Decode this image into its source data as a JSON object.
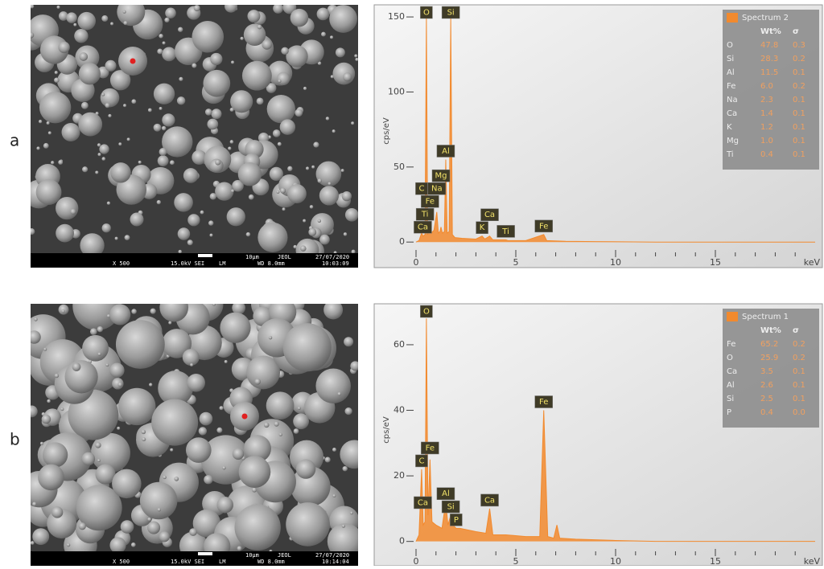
{
  "panels": [
    {
      "label": "a",
      "sem": {
        "scale": "10µm",
        "vendor": "JEOL",
        "date": "27/07/2020",
        "magnification": "X 500",
        "mode": "15.0kV SEI",
        "lens": "LM",
        "distance": "WD 8.0mm",
        "time": "10:03:09"
      }
    },
    {
      "label": "b",
      "sem": {
        "scale": "10µm",
        "vendor": "JEOL",
        "date": "27/07/2020",
        "magnification": "X 500",
        "mode": "15.0kV SEI",
        "lens": "LM",
        "distance": "WD 8.0mm",
        "time": "10:14:04"
      }
    }
  ],
  "chart_data": [
    {
      "type": "area",
      "ylabel": "cps/eV",
      "xlabel": "keV",
      "x": [
        0,
        0.15,
        0.28,
        0.35,
        0.45,
        0.52,
        0.58,
        0.65,
        0.7,
        0.78,
        0.9,
        1.04,
        1.12,
        1.2,
        1.25,
        1.32,
        1.42,
        1.49,
        1.56,
        1.66,
        1.74,
        1.82,
        1.95,
        2.3,
        3.0,
        3.31,
        3.45,
        3.69,
        3.85,
        4.5,
        4.6,
        5.5,
        6.4,
        6.55,
        7.5,
        9,
        12,
        20
      ],
      "series": [
        {
          "name": "Spectrum 2",
          "color": "#f28a2e",
          "values": [
            0,
            1,
            6,
            4,
            5,
            150,
            5,
            7,
            14,
            6,
            8,
            20,
            6,
            7,
            10,
            6,
            7,
            55,
            6,
            7,
            150,
            5,
            3,
            2.5,
            2,
            4,
            2,
            4,
            1.5,
            1.5,
            1,
            1,
            5,
            1,
            0.5,
            0.3,
            0,
            0
          ]
        }
      ],
      "xlim": [
        0,
        20
      ],
      "xticks": [
        0,
        5,
        10,
        15
      ],
      "xminorticks": [
        1,
        2,
        3,
        4,
        6,
        7,
        8,
        9,
        11,
        12,
        13,
        14,
        16,
        17,
        18,
        19
      ],
      "ylim": [
        -9,
        157
      ],
      "yticks": [
        0,
        50,
        100,
        150
      ],
      "annotations": [
        {
          "text": "O",
          "x": 0.52
        },
        {
          "text": "Si",
          "x": 1.74
        },
        {
          "text": "Al",
          "x": 1.49
        },
        {
          "text": "Ca",
          "x": 0.34
        },
        {
          "text": "Ti",
          "x": 0.45
        },
        {
          "text": "Fe",
          "x": 0.7
        },
        {
          "text": "C",
          "x": 0.28
        },
        {
          "text": "Na",
          "x": 1.04
        },
        {
          "text": "Mg",
          "x": 1.25
        },
        {
          "text": "K",
          "x": 3.31
        },
        {
          "text": "Ca",
          "x": 3.69
        },
        {
          "text": "Ti",
          "x": 4.5
        },
        {
          "text": "Fe",
          "x": 6.4
        }
      ],
      "table": {
        "headers": [
          "Wt%",
          "σ"
        ],
        "rows": [
          {
            "element": "O",
            "wt": "47.8",
            "sigma": "0.3"
          },
          {
            "element": "Si",
            "wt": "28.3",
            "sigma": "0.2"
          },
          {
            "element": "Al",
            "wt": "11.5",
            "sigma": "0.1"
          },
          {
            "element": "Fe",
            "wt": "6.0",
            "sigma": "0.2"
          },
          {
            "element": "Na",
            "wt": "2.3",
            "sigma": "0.1"
          },
          {
            "element": "Ca",
            "wt": "1.4",
            "sigma": "0.1"
          },
          {
            "element": "K",
            "wt": "1.2",
            "sigma": "0.1"
          },
          {
            "element": "Mg",
            "wt": "1.0",
            "sigma": "0.1"
          },
          {
            "element": "Ti",
            "wt": "0.4",
            "sigma": "0.1",
            "color": "#e8312a"
          }
        ]
      }
    },
    {
      "type": "area",
      "ylabel": "cps/eV",
      "xlabel": "keV",
      "x": [
        0,
        0.15,
        0.28,
        0.36,
        0.45,
        0.52,
        0.6,
        0.7,
        0.8,
        1.0,
        1.3,
        1.49,
        1.6,
        1.74,
        1.85,
        2.01,
        2.2,
        3.0,
        3.5,
        3.69,
        3.85,
        4.5,
        5.5,
        6.2,
        6.4,
        6.6,
        6.9,
        7.06,
        7.2,
        8,
        10,
        12,
        20
      ],
      "series": [
        {
          "name": "Spectrum 1",
          "color": "#f28a2e",
          "values": [
            0,
            2,
            22,
            5,
            6,
            68,
            8,
            25,
            6,
            5,
            4,
            12,
            5,
            8,
            5,
            4,
            4,
            3,
            2.5,
            10,
            2,
            2,
            1.5,
            1.5,
            40,
            1.5,
            1,
            5,
            1,
            0.7,
            0.3,
            0,
            0
          ]
        }
      ],
      "xlim": [
        0,
        20
      ],
      "xticks": [
        0,
        5,
        10,
        15
      ],
      "xminorticks": [
        1,
        2,
        3,
        4,
        6,
        7,
        8,
        9,
        11,
        12,
        13,
        14,
        16,
        17,
        18,
        19
      ],
      "ylim": [
        -4,
        72
      ],
      "yticks": [
        0,
        20,
        40,
        60
      ],
      "annotations": [
        {
          "text": "O",
          "x": 0.52
        },
        {
          "text": "Fe",
          "x": 6.4
        },
        {
          "text": "C",
          "x": 0.28
        },
        {
          "text": "Fe",
          "x": 0.7
        },
        {
          "text": "Al",
          "x": 1.49
        },
        {
          "text": "Si",
          "x": 1.74
        },
        {
          "text": "P",
          "x": 2.01
        },
        {
          "text": "Ca",
          "x": 3.69
        },
        {
          "text": "Ca",
          "x": 0.34
        }
      ],
      "table": {
        "headers": [
          "Wt%",
          "σ"
        ],
        "rows": [
          {
            "element": "Fe",
            "wt": "65.2",
            "sigma": "0.2"
          },
          {
            "element": "O",
            "wt": "25.9",
            "sigma": "0.2"
          },
          {
            "element": "Ca",
            "wt": "3.5",
            "sigma": "0.1"
          },
          {
            "element": "Al",
            "wt": "2.6",
            "sigma": "0.1"
          },
          {
            "element": "Si",
            "wt": "2.5",
            "sigma": "0.1"
          },
          {
            "element": "P",
            "wt": "0.4",
            "sigma": "0.0",
            "color": "#e8312a"
          }
        ]
      }
    }
  ]
}
